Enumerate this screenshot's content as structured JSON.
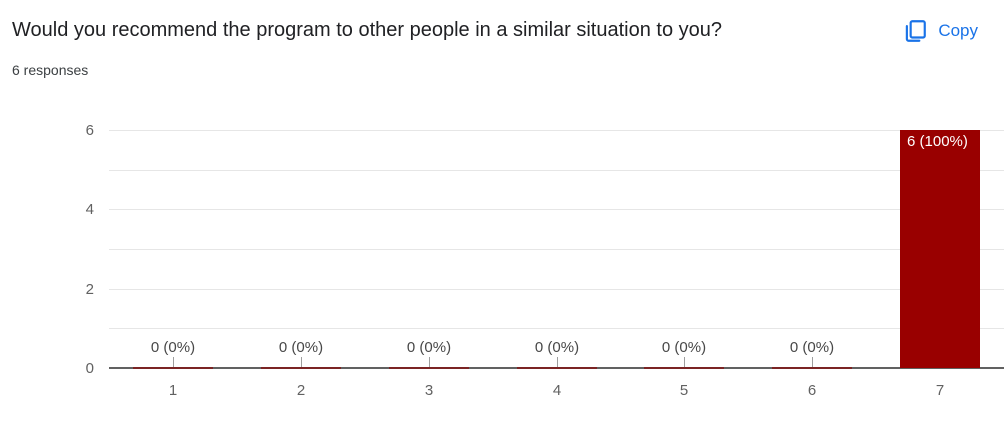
{
  "header": {
    "title": "Would you recommend the program to other people in a similar situation to you?",
    "responses_label": "6 responses",
    "copy_label": "Copy",
    "accent_color": "#1a73e8"
  },
  "chart_data": {
    "type": "bar",
    "title": "Would you recommend the program to other people in a similar situation to you?",
    "subtitle": "6 responses",
    "categories": [
      "1",
      "2",
      "3",
      "4",
      "5",
      "6",
      "7"
    ],
    "values": [
      0,
      0,
      0,
      0,
      0,
      0,
      6
    ],
    "annotations": [
      "0 (0%)",
      "0 (0%)",
      "0 (0%)",
      "0 (0%)",
      "0 (0%)",
      "0 (0%)",
      "6 (100%)"
    ],
    "xlabel": "",
    "ylabel": "",
    "ylim": [
      0,
      6
    ],
    "y_tick_labels": [
      0,
      2,
      4,
      6
    ],
    "gridline_values": [
      1,
      2,
      3,
      4,
      5,
      6
    ],
    "legend_position": "none",
    "grid": "horizontal",
    "colors": {
      "bar": "#990000",
      "zero_bar": "#7b2424",
      "bar_label": "#ffffff",
      "gridline": "#e6e6e6",
      "axis_line": "#616161",
      "tick_label": "#616161",
      "annotation": "#484848",
      "annotation_stem": "#9e9e9e"
    }
  }
}
